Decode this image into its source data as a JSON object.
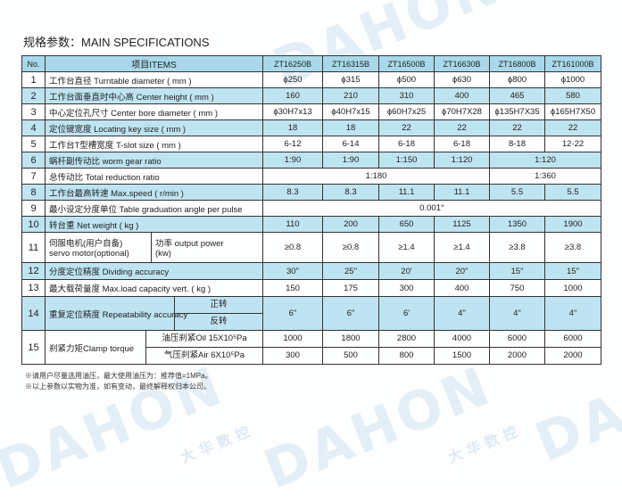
{
  "title": "规格参数：MAIN SPECIFICATIONS",
  "watermark": {
    "brand": "DAHON",
    "brand_cn": "大华数控"
  },
  "colors": {
    "header_bg": "#a9d8ea",
    "shaded_row_bg": "#bfe4f1"
  },
  "header": {
    "no": "No.",
    "items": "项目ITEMS",
    "models": [
      "ZT16250B",
      "ZT16315B",
      "ZT16500B",
      "ZT16630B",
      "ZT16800B",
      "ZT161000B"
    ]
  },
  "rows": [
    {
      "no": "1",
      "item": "工作台直径  Turntable diameter ( mm )",
      "values": [
        "ϕ250",
        "ϕ315",
        "ϕ500",
        "ϕ630",
        "ϕ800",
        "ϕ1000"
      ]
    },
    {
      "no": "2",
      "item": "工作台面垂直时中心高  Center height ( mm )",
      "values": [
        "160",
        "210",
        "310",
        "400",
        "465",
        "580"
      ]
    },
    {
      "no": "3",
      "item": "中心定位孔尺寸  Center bore diameter ( mm )",
      "values": [
        "ϕ30H7x13",
        "ϕ40H7x15",
        "ϕ60H7x25",
        "ϕ70H7X28",
        "ϕ135H7X35",
        "ϕ165H7X50"
      ]
    },
    {
      "no": "4",
      "item": "定位键宽度  Locating key size ( mm )",
      "values": [
        "18",
        "18",
        "22",
        "22",
        "22",
        "22"
      ]
    },
    {
      "no": "5",
      "item": "工作台T型槽宽度  T-slot size ( mm )",
      "values": [
        "6-12",
        "6-14",
        "6-18",
        "6-18",
        "8-18",
        "12-22"
      ]
    },
    {
      "no": "6",
      "item": "蜗杆副传动比  worm gear ratio",
      "values": [
        "1:90",
        "1:90",
        "1:150",
        "1:120",
        "1:120"
      ]
    },
    {
      "no": "7",
      "item": "总传动比  Total reduction ratio",
      "values": [
        "1:180",
        "1:360"
      ]
    },
    {
      "no": "8",
      "item": "工作台最高转速  Max.speed ( r/min )",
      "values": [
        "8.3",
        "8.3",
        "11.1",
        "11.1",
        "5.5",
        "5.5"
      ]
    },
    {
      "no": "9",
      "item": "最小设定分度单位  Table graduation angle per pulse",
      "values": [
        "0.001°"
      ]
    },
    {
      "no": "10",
      "item": "转台重  Net weight ( kg )",
      "values": [
        "110",
        "200",
        "650",
        "1125",
        "1350",
        "1900"
      ]
    },
    {
      "no": "11",
      "item": "伺服电机(用户自备)",
      "item2": "servo motor(optional)",
      "sub": "功率  output power",
      "sub2": "(kw)",
      "values": [
        "≥0.8",
        "≥0.8",
        "≥1.4",
        "≥1.4",
        "≥3.8",
        "≥3.8"
      ]
    },
    {
      "no": "12",
      "item": "分度定位精度  Dividing accuracy",
      "values": [
        "30\"",
        "25\"",
        "20'",
        "20\"",
        "15\"",
        "15\""
      ]
    },
    {
      "no": "13",
      "item": "最大载荷量度  Max.load capacity vert.    ( kg )",
      "values": [
        "150",
        "175",
        "300",
        "400",
        "750",
        "1000"
      ]
    },
    {
      "no": "14",
      "item": "重复定位精度  Repeatability accuracy",
      "sub": "正转",
      "sub2": "反转",
      "values": [
        "6\"",
        "6\"",
        "6'",
        "4\"",
        "4\"",
        "4\""
      ]
    },
    {
      "no": "15",
      "item": "刹紧力矩Clamp torque",
      "sub": "油压刹紧Oil   15X10⁵Pa",
      "sub2": "气压刹紧Air   6X10⁵Pa",
      "values": [
        "1000",
        "1800",
        "2800",
        "4000",
        "6000",
        "6000"
      ],
      "values2": [
        "300",
        "500",
        "800",
        "1500",
        "2000",
        "2000"
      ]
    }
  ],
  "notes": [
    "※请用户尽量选用油压，最大使用油压为：推荐值=1MPa。",
    "※以上参数以实物为准，如有变动，最终解释权归本公司。"
  ]
}
